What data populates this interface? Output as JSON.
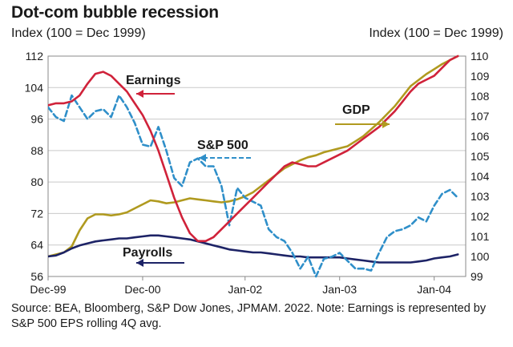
{
  "title": "Dot-com bubble recession",
  "left_axis_note": "Index (100 = Dec 1999)",
  "right_axis_note": "Index (100 = Dec 1999)",
  "source_note": "Source: BEA, Bloomberg, S&P Dow Jones, JPMAM. 2022. Note: Earnings is represented by S&P 500 EPS rolling 4Q avg.",
  "chart_data": {
    "type": "line",
    "title": "Dot-com bubble recession",
    "x_unit": "months since Dec-99",
    "x_range": [
      0,
      53
    ],
    "x_ticks": [
      {
        "label": "Dec-99",
        "x": 0
      },
      {
        "label": "Dec-00",
        "x": 12
      },
      {
        "label": "Jan-02",
        "x": 25
      },
      {
        "label": "Jan-03",
        "x": 37
      },
      {
        "label": "Jan-04",
        "x": 49
      }
    ],
    "y_left": {
      "label": "Index (100 = Dec 1999)",
      "range": [
        56,
        112
      ],
      "ticks": [
        56,
        64,
        72,
        80,
        88,
        96,
        104,
        112
      ]
    },
    "y_right": {
      "label": "Index (100 = Dec 1999)",
      "range": [
        99,
        110
      ],
      "ticks": [
        99,
        100,
        101,
        102,
        103,
        104,
        105,
        106,
        107,
        108,
        109,
        110
      ]
    },
    "colors": {
      "earnings": "#d0223a",
      "sp500": "#2f8fc9",
      "gdp": "#b09a1f",
      "payrolls": "#1d2366",
      "grid": "#c9c9c9",
      "axis": "#8a8a8a"
    },
    "series": [
      {
        "name": "Earnings",
        "axis": "left",
        "color": "#d0223a",
        "style": "solid",
        "points": [
          [
            0,
            99.5
          ],
          [
            1,
            100
          ],
          [
            2,
            100
          ],
          [
            3,
            100.5
          ],
          [
            4,
            102
          ],
          [
            5,
            105
          ],
          [
            6,
            107.5
          ],
          [
            7,
            108
          ],
          [
            8,
            107
          ],
          [
            9,
            105
          ],
          [
            10,
            103
          ],
          [
            11,
            100
          ],
          [
            12,
            97
          ],
          [
            13,
            93
          ],
          [
            14,
            88
          ],
          [
            15,
            82
          ],
          [
            16,
            76
          ],
          [
            17,
            71
          ],
          [
            18,
            67
          ],
          [
            19,
            65
          ],
          [
            20,
            65
          ],
          [
            21,
            66
          ],
          [
            22,
            68
          ],
          [
            23,
            70
          ],
          [
            24,
            72
          ],
          [
            25,
            74
          ],
          [
            26,
            76
          ],
          [
            27,
            78
          ],
          [
            28,
            80
          ],
          [
            29,
            82
          ],
          [
            30,
            84
          ],
          [
            31,
            85
          ],
          [
            32,
            84.5
          ],
          [
            33,
            84
          ],
          [
            34,
            84
          ],
          [
            35,
            85
          ],
          [
            36,
            86
          ],
          [
            37,
            87
          ],
          [
            38,
            88
          ],
          [
            39,
            89.5
          ],
          [
            40,
            91
          ],
          [
            41,
            92.5
          ],
          [
            42,
            94
          ],
          [
            43,
            96
          ],
          [
            44,
            98
          ],
          [
            45,
            100.5
          ],
          [
            46,
            103
          ],
          [
            47,
            105
          ],
          [
            48,
            106
          ],
          [
            49,
            107
          ],
          [
            50,
            109
          ],
          [
            51,
            111
          ],
          [
            52,
            112
          ]
        ]
      },
      {
        "name": "S&P 500",
        "axis": "left",
        "color": "#2f8fc9",
        "style": "dashed",
        "points": [
          [
            0,
            99
          ],
          [
            1,
            96.5
          ],
          [
            2,
            95.5
          ],
          [
            3,
            102
          ],
          [
            4,
            99
          ],
          [
            5,
            96
          ],
          [
            6,
            98
          ],
          [
            7,
            98.5
          ],
          [
            8,
            96.5
          ],
          [
            9,
            102
          ],
          [
            10,
            99
          ],
          [
            11,
            95
          ],
          [
            12,
            89.5
          ],
          [
            13,
            89
          ],
          [
            14,
            94
          ],
          [
            15,
            88
          ],
          [
            16,
            81
          ],
          [
            17,
            79
          ],
          [
            18,
            85
          ],
          [
            19,
            86
          ],
          [
            20,
            84
          ],
          [
            21,
            84
          ],
          [
            22,
            79
          ],
          [
            23,
            69
          ],
          [
            24,
            78.5
          ],
          [
            25,
            76
          ],
          [
            26,
            75
          ],
          [
            27,
            74
          ],
          [
            28,
            68
          ],
          [
            29,
            66
          ],
          [
            30,
            65
          ],
          [
            31,
            62
          ],
          [
            32,
            58
          ],
          [
            33,
            61
          ],
          [
            34,
            56
          ],
          [
            35,
            60.5
          ],
          [
            36,
            61
          ],
          [
            37,
            62
          ],
          [
            38,
            60
          ],
          [
            39,
            58
          ],
          [
            40,
            58
          ],
          [
            41,
            57.5
          ],
          [
            42,
            62
          ],
          [
            43,
            66
          ],
          [
            44,
            67.5
          ],
          [
            45,
            68
          ],
          [
            46,
            69
          ],
          [
            47,
            71
          ],
          [
            48,
            70
          ],
          [
            49,
            74
          ],
          [
            50,
            77
          ],
          [
            51,
            78
          ],
          [
            52,
            76
          ]
        ]
      },
      {
        "name": "GDP",
        "axis": "right",
        "color": "#b09a1f",
        "style": "solid",
        "points": [
          [
            0,
            100
          ],
          [
            1,
            100.1
          ],
          [
            2,
            100.2
          ],
          [
            3,
            100.5
          ],
          [
            4,
            101.3
          ],
          [
            5,
            101.9
          ],
          [
            6,
            102.1
          ],
          [
            7,
            102.1
          ],
          [
            8,
            102.05
          ],
          [
            9,
            102.1
          ],
          [
            10,
            102.2
          ],
          [
            11,
            102.4
          ],
          [
            12,
            102.6
          ],
          [
            13,
            102.8
          ],
          [
            14,
            102.75
          ],
          [
            15,
            102.65
          ],
          [
            16,
            102.7
          ],
          [
            17,
            102.8
          ],
          [
            18,
            102.9
          ],
          [
            19,
            102.85
          ],
          [
            20,
            102.8
          ],
          [
            21,
            102.75
          ],
          [
            22,
            102.7
          ],
          [
            23,
            102.75
          ],
          [
            24,
            102.85
          ],
          [
            25,
            103
          ],
          [
            26,
            103.2
          ],
          [
            27,
            103.5
          ],
          [
            28,
            103.8
          ],
          [
            29,
            104.1
          ],
          [
            30,
            104.4
          ],
          [
            31,
            104.6
          ],
          [
            32,
            104.8
          ],
          [
            33,
            104.95
          ],
          [
            34,
            105.05
          ],
          [
            35,
            105.2
          ],
          [
            36,
            105.3
          ],
          [
            37,
            105.4
          ],
          [
            38,
            105.5
          ],
          [
            39,
            105.75
          ],
          [
            40,
            106
          ],
          [
            41,
            106.35
          ],
          [
            42,
            106.7
          ],
          [
            43,
            107.1
          ],
          [
            44,
            107.5
          ],
          [
            45,
            108
          ],
          [
            46,
            108.5
          ],
          [
            47,
            108.8
          ],
          [
            48,
            109.1
          ],
          [
            49,
            109.35
          ],
          [
            50,
            109.6
          ],
          [
            51,
            109.8
          ],
          [
            52,
            110
          ]
        ]
      },
      {
        "name": "Payrolls",
        "axis": "right",
        "color": "#1d2366",
        "style": "solid",
        "points": [
          [
            0,
            100
          ],
          [
            1,
            100.05
          ],
          [
            2,
            100.2
          ],
          [
            3,
            100.4
          ],
          [
            4,
            100.55
          ],
          [
            5,
            100.65
          ],
          [
            6,
            100.75
          ],
          [
            7,
            100.8
          ],
          [
            8,
            100.85
          ],
          [
            9,
            100.9
          ],
          [
            10,
            100.9
          ],
          [
            11,
            100.95
          ],
          [
            12,
            101
          ],
          [
            13,
            101.05
          ],
          [
            14,
            101.05
          ],
          [
            15,
            101
          ],
          [
            16,
            100.95
          ],
          [
            17,
            100.9
          ],
          [
            18,
            100.85
          ],
          [
            19,
            100.75
          ],
          [
            20,
            100.65
          ],
          [
            21,
            100.55
          ],
          [
            22,
            100.45
          ],
          [
            23,
            100.35
          ],
          [
            24,
            100.3
          ],
          [
            25,
            100.25
          ],
          [
            26,
            100.2
          ],
          [
            27,
            100.2
          ],
          [
            28,
            100.15
          ],
          [
            29,
            100.1
          ],
          [
            30,
            100.05
          ],
          [
            31,
            100
          ],
          [
            32,
            100
          ],
          [
            33,
            99.95
          ],
          [
            34,
            99.95
          ],
          [
            35,
            99.95
          ],
          [
            36,
            99.95
          ],
          [
            37,
            99.95
          ],
          [
            38,
            99.9
          ],
          [
            39,
            99.85
          ],
          [
            40,
            99.8
          ],
          [
            41,
            99.75
          ],
          [
            42,
            99.7
          ],
          [
            43,
            99.7
          ],
          [
            44,
            99.7
          ],
          [
            45,
            99.7
          ],
          [
            46,
            99.7
          ],
          [
            47,
            99.75
          ],
          [
            48,
            99.8
          ],
          [
            49,
            99.9
          ],
          [
            50,
            99.95
          ],
          [
            51,
            100
          ],
          [
            52,
            100.1
          ]
        ]
      }
    ],
    "annotations": [
      {
        "text": "Earnings",
        "series": "Earnings"
      },
      {
        "text": "S&P 500",
        "series": "S&P 500"
      },
      {
        "text": "GDP",
        "series": "GDP"
      },
      {
        "text": "Payrolls",
        "series": "Payrolls"
      }
    ]
  }
}
